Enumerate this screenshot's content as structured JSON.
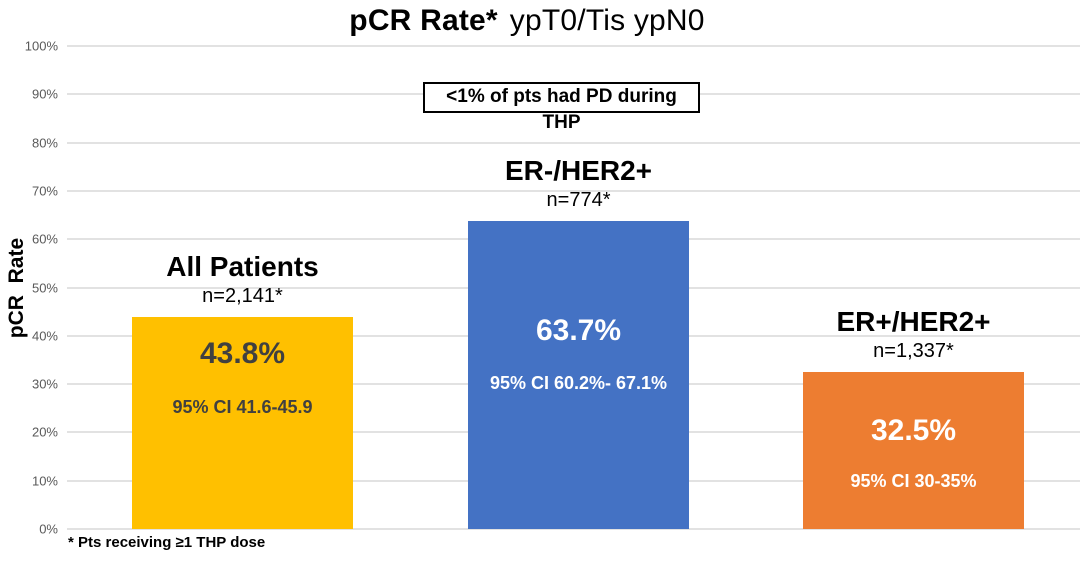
{
  "chart_data": {
    "type": "bar",
    "title_bold": "pCR Rate*",
    "title_rest": "ypT0/Tis ypN0",
    "ylabel": "pCR  Rate",
    "ylim": [
      0,
      100
    ],
    "yticks": [
      "100%",
      "90%",
      "80%",
      "70%",
      "60%",
      "50%",
      "40%",
      "30%",
      "20%",
      "10%",
      "0%"
    ],
    "grid": true,
    "annotation": "<1% of pts had PD during THP",
    "footnote": "* Pts receiving ≥1 THP dose",
    "categories": [
      "All Patients",
      "ER-/HER2+",
      "ER+/HER2+"
    ],
    "values": [
      43.8,
      63.7,
      32.5
    ],
    "bars": [
      {
        "label": "All Patients",
        "n": "n=2,141*",
        "value": 43.8,
        "value_label": "43.8%",
        "ci": "95% CI 41.6-45.9",
        "color": "#FFC000",
        "text_color": "#404040"
      },
      {
        "label": "ER-/HER2+",
        "n": "n=774*",
        "value": 63.7,
        "value_label": "63.7%",
        "ci": "95% CI 60.2%- 67.1%",
        "color": "#4472C4",
        "text_color": "#FFFFFF"
      },
      {
        "label": "ER+/HER2+",
        "n": "n=1,337*",
        "value": 32.5,
        "value_label": "32.5%",
        "ci": "95% CI 30-35%",
        "color": "#ED7D31",
        "text_color": "#FFFFFF"
      }
    ],
    "colors": {
      "gridline": "#E2E2E2",
      "tick_text": "#595959",
      "bar_all_patients": "#FFC000",
      "bar_er_neg": "#4472C4",
      "bar_er_pos": "#ED7D31"
    }
  }
}
